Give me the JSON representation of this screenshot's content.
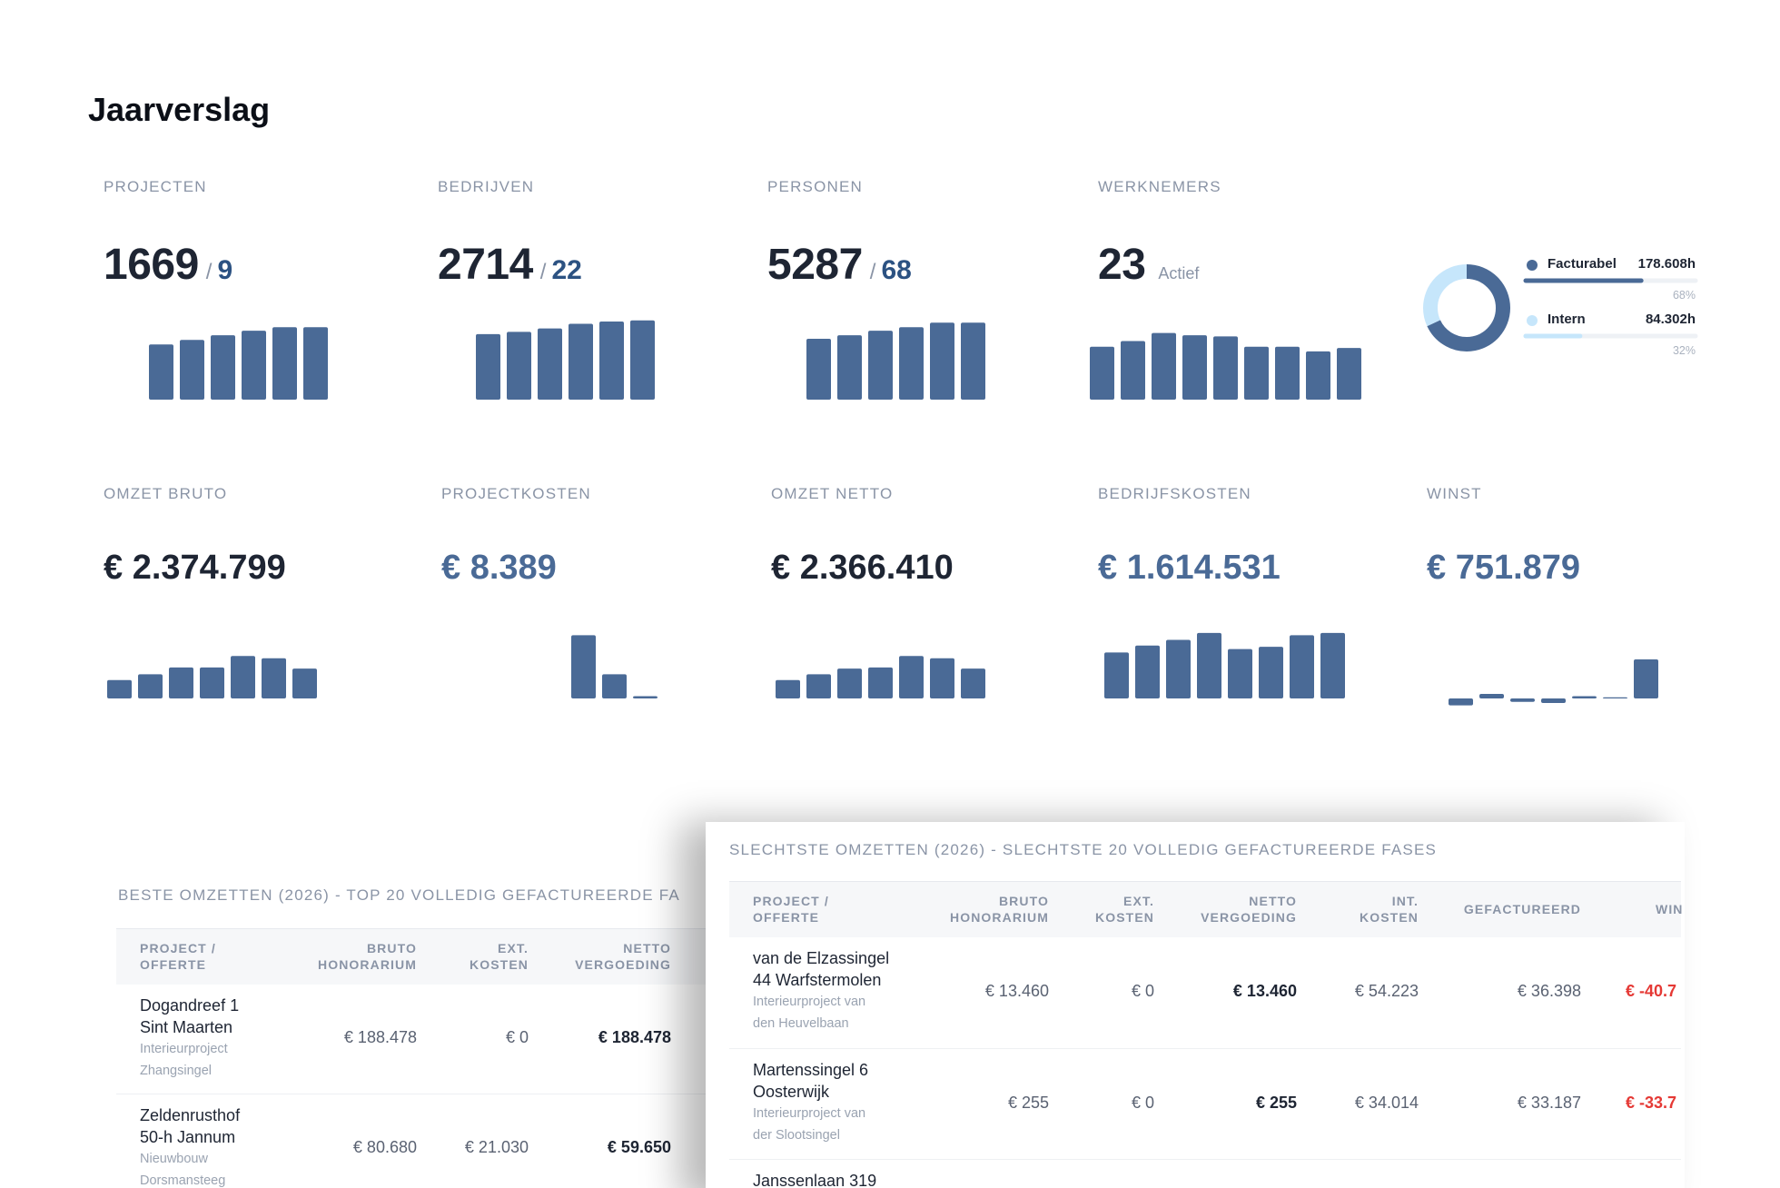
{
  "header": {
    "title": "Jaarverslag"
  },
  "stats": [
    {
      "label": "PROJECTEN",
      "value": 1669,
      "divider": "/",
      "sub": 9,
      "bars": [
        48,
        52,
        56,
        60,
        63,
        63
      ]
    },
    {
      "label": "BEDRIJVEN",
      "value": 2714,
      "divider": "/",
      "sub": 22,
      "bars": [
        57,
        59,
        62,
        66,
        68,
        69
      ]
    },
    {
      "label": "PERSONEN",
      "value": 5287,
      "divider": "/",
      "sub": 68,
      "bars": [
        53,
        56,
        60,
        63,
        67,
        67
      ]
    },
    {
      "label": "WERKNEMERS",
      "value": 23,
      "note": "Actief",
      "bars": [
        46,
        51,
        58,
        56,
        55,
        46,
        46,
        42,
        45
      ]
    }
  ],
  "hours": {
    "items": [
      {
        "name": "Facturabel",
        "value": "178.608h",
        "percent": 68,
        "percent_label": "68%",
        "color": "#4a6a96"
      },
      {
        "name": "Intern",
        "value": "84.302h",
        "percent": 32,
        "percent_label": "32%",
        "color": "#c6e6fb"
      }
    ]
  },
  "finance": [
    {
      "label": "OMZET BRUTO",
      "value": "€ 2.374.799",
      "bars": [
        16,
        21,
        27,
        27,
        37,
        35,
        26
      ]
    },
    {
      "label": "PROJECTKOSTEN",
      "value": "€ 8.389",
      "bars": [
        0,
        0,
        0,
        0,
        55,
        21,
        2
      ]
    },
    {
      "label": "OMZET NETTO",
      "value": "€ 2.366.410",
      "bars": [
        16,
        21,
        26,
        27,
        37,
        35,
        26
      ]
    },
    {
      "label": "BEDRIJFSKOSTEN",
      "value": "€ 1.614.531",
      "bars": [
        40,
        46,
        51,
        57,
        43,
        45,
        55,
        57
      ]
    },
    {
      "label": "WINST",
      "value": "€ 751.879",
      "bars": [
        -6,
        4,
        -3,
        -4,
        2,
        1,
        34
      ]
    }
  ],
  "tables": [
    {
      "title": "BESTE OMZETTEN (2026) - TOP 20 VOLLEDIG GEFACTUREERDE FA",
      "columns": [
        [
          "PROJECT /",
          "OFFERTE"
        ],
        [
          "BRUTO",
          "HONORARIUM"
        ],
        [
          "EXT.",
          "KOSTEN"
        ],
        [
          "NETTO",
          "VERGOEDING"
        ]
      ],
      "rows": [
        {
          "name": [
            "Dogandreef 1",
            "Sint Maarten"
          ],
          "description": [
            "Interieurproject",
            "Zhangsingel"
          ],
          "cells": [
            "€ 188.478",
            "€ 0",
            "€ 188.478"
          ]
        },
        {
          "name": [
            "Zeldenrusthof",
            "50-h Jannum"
          ],
          "description": [
            "Nieuwbouw",
            "Dorsmansteeg"
          ],
          "cells": [
            "€ 80.680",
            "€ 21.030",
            "€ 59.650"
          ]
        }
      ]
    },
    {
      "title": "SLECHTSTE OMZETTEN (2026) - SLECHTSTE 20 VOLLEDIG GEFACTUREERDE FASES",
      "columns": [
        [
          "PROJECT /",
          "OFFERTE"
        ],
        [
          "BRUTO",
          "HONORARIUM"
        ],
        [
          "EXT.",
          "KOSTEN"
        ],
        [
          "NETTO",
          "VERGOEDING"
        ],
        [
          "INT.",
          "KOSTEN"
        ],
        [
          "GEFACTUREERD"
        ],
        [
          "WIN"
        ]
      ],
      "rows": [
        {
          "name": [
            "van de Elzassingel",
            "44 Warfstermolen"
          ],
          "description": [
            "Interieurproject van",
            "den Heuvelbaan"
          ],
          "cells": [
            "€ 13.460",
            "€ 0",
            "€ 13.460",
            "€ 54.223",
            "€ 36.398",
            "€ -40.7"
          ]
        },
        {
          "name": [
            "Martenssingel 6",
            "Oosterwijk"
          ],
          "description": [
            "Interieurproject van",
            "der Slootsingel"
          ],
          "cells": [
            "€ 255",
            "€ 0",
            "€ 255",
            "€ 34.014",
            "€ 33.187",
            "€ -33.7"
          ]
        },
        {
          "name": [
            "Janssenlaan 319"
          ],
          "description": [],
          "cells": []
        }
      ]
    }
  ]
}
